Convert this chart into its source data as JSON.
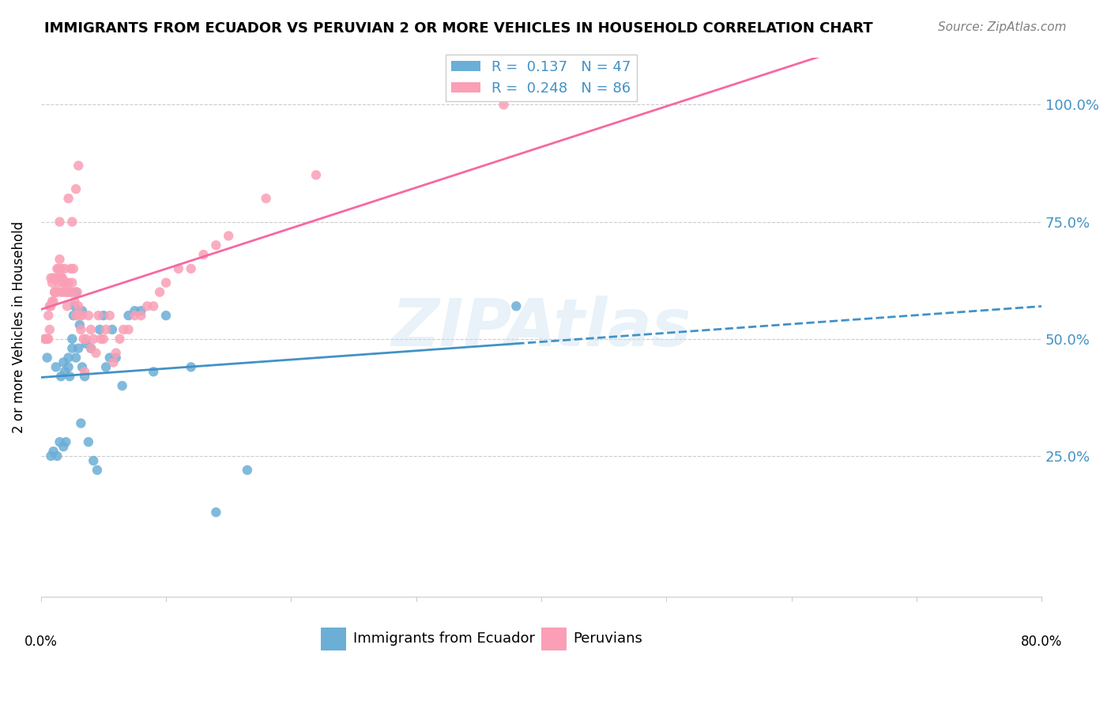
{
  "title": "IMMIGRANTS FROM ECUADOR VS PERUVIAN 2 OR MORE VEHICLES IN HOUSEHOLD CORRELATION CHART",
  "source": "Source: ZipAtlas.com",
  "ylabel": "2 or more Vehicles in Household",
  "ytick_vals": [
    0.25,
    0.5,
    0.75,
    1.0
  ],
  "legend_blue_r": "0.137",
  "legend_blue_n": "47",
  "legend_pink_r": "0.248",
  "legend_pink_n": "86",
  "legend_label_blue": "Immigrants from Ecuador",
  "legend_label_pink": "Peruvians",
  "blue_color": "#6baed6",
  "pink_color": "#fa9fb5",
  "trendline_blue": "#4292c6",
  "trendline_pink": "#f768a1",
  "watermark": "ZIPAtlas",
  "blue_scatter_x": [
    0.005,
    0.008,
    0.01,
    0.012,
    0.013,
    0.015,
    0.016,
    0.018,
    0.018,
    0.019,
    0.02,
    0.022,
    0.022,
    0.023,
    0.025,
    0.025,
    0.026,
    0.027,
    0.028,
    0.028,
    0.03,
    0.031,
    0.032,
    0.033,
    0.033,
    0.035,
    0.036,
    0.038,
    0.04,
    0.042,
    0.045,
    0.047,
    0.05,
    0.052,
    0.055,
    0.057,
    0.06,
    0.065,
    0.07,
    0.075,
    0.08,
    0.09,
    0.1,
    0.12,
    0.14,
    0.165,
    0.38
  ],
  "blue_scatter_y": [
    0.46,
    0.25,
    0.26,
    0.44,
    0.25,
    0.28,
    0.42,
    0.45,
    0.27,
    0.43,
    0.28,
    0.44,
    0.46,
    0.42,
    0.48,
    0.5,
    0.55,
    0.57,
    0.6,
    0.46,
    0.48,
    0.53,
    0.32,
    0.56,
    0.44,
    0.42,
    0.49,
    0.28,
    0.48,
    0.24,
    0.22,
    0.52,
    0.55,
    0.44,
    0.46,
    0.52,
    0.46,
    0.4,
    0.55,
    0.56,
    0.56,
    0.43,
    0.55,
    0.44,
    0.13,
    0.22,
    0.57
  ],
  "pink_scatter_x": [
    0.003,
    0.004,
    0.005,
    0.006,
    0.006,
    0.007,
    0.007,
    0.008,
    0.008,
    0.009,
    0.009,
    0.01,
    0.01,
    0.011,
    0.011,
    0.012,
    0.012,
    0.013,
    0.013,
    0.014,
    0.014,
    0.015,
    0.015,
    0.016,
    0.016,
    0.017,
    0.017,
    0.018,
    0.018,
    0.019,
    0.019,
    0.02,
    0.02,
    0.021,
    0.021,
    0.022,
    0.023,
    0.024,
    0.024,
    0.025,
    0.025,
    0.026,
    0.027,
    0.028,
    0.029,
    0.03,
    0.031,
    0.032,
    0.033,
    0.034,
    0.035,
    0.036,
    0.038,
    0.04,
    0.042,
    0.044,
    0.046,
    0.048,
    0.05,
    0.052,
    0.055,
    0.058,
    0.06,
    0.063,
    0.066,
    0.07,
    0.075,
    0.08,
    0.085,
    0.09,
    0.095,
    0.1,
    0.11,
    0.12,
    0.13,
    0.14,
    0.15,
    0.18,
    0.22,
    0.025,
    0.028,
    0.03,
    0.015,
    0.022,
    0.04,
    0.37
  ],
  "pink_scatter_y": [
    0.5,
    0.5,
    0.5,
    0.5,
    0.55,
    0.52,
    0.57,
    0.57,
    0.63,
    0.58,
    0.62,
    0.58,
    0.63,
    0.6,
    0.6,
    0.63,
    0.6,
    0.65,
    0.6,
    0.65,
    0.62,
    0.63,
    0.67,
    0.6,
    0.65,
    0.63,
    0.63,
    0.62,
    0.6,
    0.65,
    0.62,
    0.6,
    0.62,
    0.6,
    0.57,
    0.62,
    0.6,
    0.65,
    0.6,
    0.62,
    0.6,
    0.65,
    0.58,
    0.55,
    0.6,
    0.57,
    0.55,
    0.52,
    0.55,
    0.5,
    0.43,
    0.5,
    0.55,
    0.52,
    0.5,
    0.47,
    0.55,
    0.5,
    0.5,
    0.52,
    0.55,
    0.45,
    0.47,
    0.5,
    0.52,
    0.52,
    0.55,
    0.55,
    0.57,
    0.57,
    0.6,
    0.62,
    0.65,
    0.65,
    0.68,
    0.7,
    0.72,
    0.8,
    0.85,
    0.75,
    0.82,
    0.87,
    0.75,
    0.8,
    0.48,
    1.0
  ],
  "xlim": [
    0.0,
    0.8
  ],
  "ylim": [
    -0.05,
    1.1
  ]
}
